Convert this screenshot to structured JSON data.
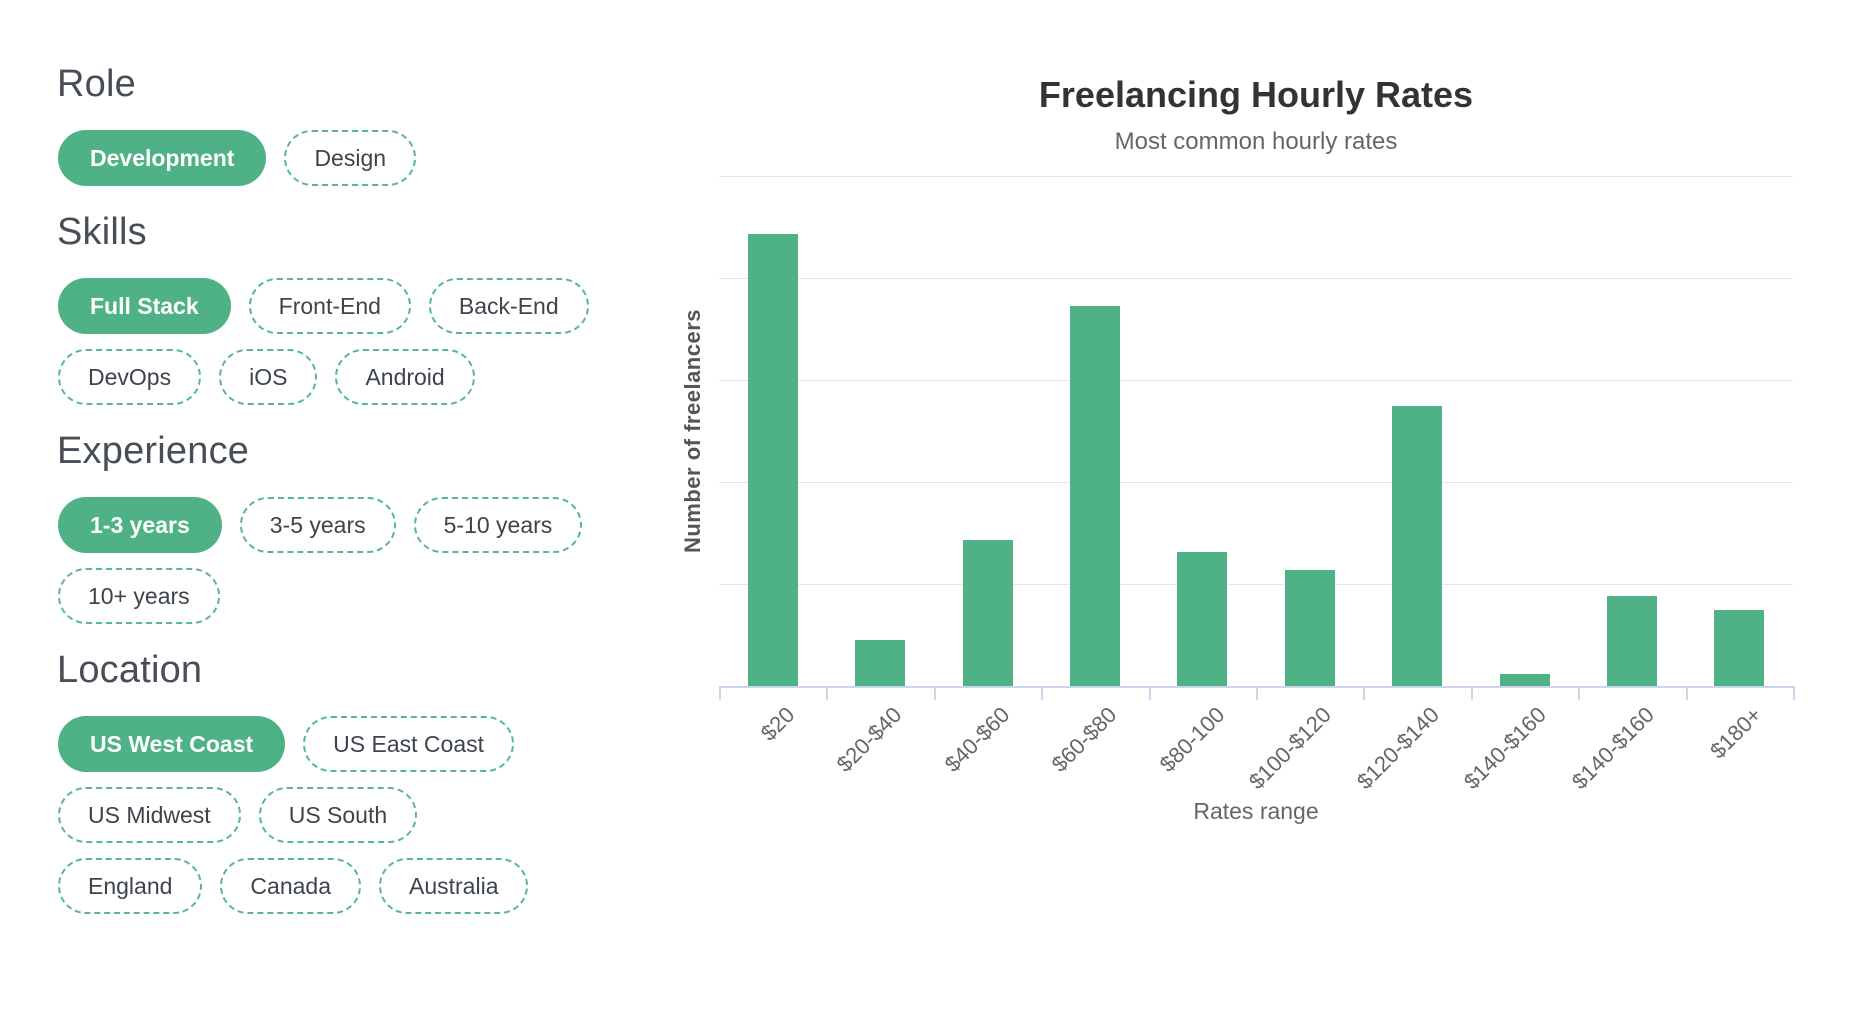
{
  "sidebar": {
    "sections": [
      {
        "title": "Role",
        "rows": [
          [
            {
              "label": "Development",
              "selected": true
            },
            {
              "label": "Design",
              "selected": false
            }
          ]
        ]
      },
      {
        "title": "Skills",
        "rows": [
          [
            {
              "label": "Full Stack",
              "selected": true
            },
            {
              "label": "Front-End",
              "selected": false
            },
            {
              "label": "Back-End",
              "selected": false
            }
          ],
          [
            {
              "label": "DevOps",
              "selected": false
            },
            {
              "label": "iOS",
              "selected": false
            },
            {
              "label": "Android",
              "selected": false
            }
          ]
        ]
      },
      {
        "title": "Experience",
        "rows": [
          [
            {
              "label": "1-3 years",
              "selected": true
            },
            {
              "label": "3-5 years",
              "selected": false
            },
            {
              "label": "5-10 years",
              "selected": false
            }
          ],
          [
            {
              "label": "10+ years",
              "selected": false
            }
          ]
        ]
      },
      {
        "title": "Location",
        "rows": [
          [
            {
              "label": "US West Coast",
              "selected": true
            },
            {
              "label": "US East Coast",
              "selected": false
            }
          ],
          [
            {
              "label": "US Midwest",
              "selected": false
            },
            {
              "label": "US South",
              "selected": false
            }
          ],
          [
            {
              "label": "England",
              "selected": false
            },
            {
              "label": "Canada",
              "selected": false
            },
            {
              "label": "Australia",
              "selected": false
            }
          ]
        ]
      }
    ]
  },
  "colors": {
    "accent_green": "#4fb286",
    "pill_dashed_border": "#57b88f",
    "selected_pill_text": "#ffffff",
    "pill_text": "#3d444d",
    "heading_text": "#474e57",
    "chart_title_text": "#333333",
    "chart_subtitle_text": "#666666",
    "axis_label_text": "#666666",
    "y_axis_title_text": "#555555",
    "grid_line": "#e6e6e6",
    "axis_line": "#ccd6eb"
  },
  "chart_data": {
    "type": "bar",
    "title": "Freelancing Hourly Rates",
    "subtitle": "Most common hourly rates",
    "xlabel": "Rates range",
    "ylabel": "Number of freelancers",
    "categories": [
      "$20",
      "$20-$40",
      "$40-$60",
      "$60-$80",
      "$80-100",
      "$100-$120",
      "$120-$140",
      "$140-$160",
      "$140-$160",
      "$180+"
    ],
    "values": [
      4.43,
      0.45,
      1.43,
      3.73,
      1.31,
      1.14,
      2.75,
      0.12,
      0.88,
      0.75
    ],
    "ylim": [
      0,
      5
    ],
    "y_tick_labels_visible": false,
    "y_axis_unit": "gridline intervals (no numeric tick labels shown)",
    "gridlines": "horizontal",
    "x_label_rotation_deg": -45,
    "legend": "none",
    "bar_color": "#4fb286"
  }
}
